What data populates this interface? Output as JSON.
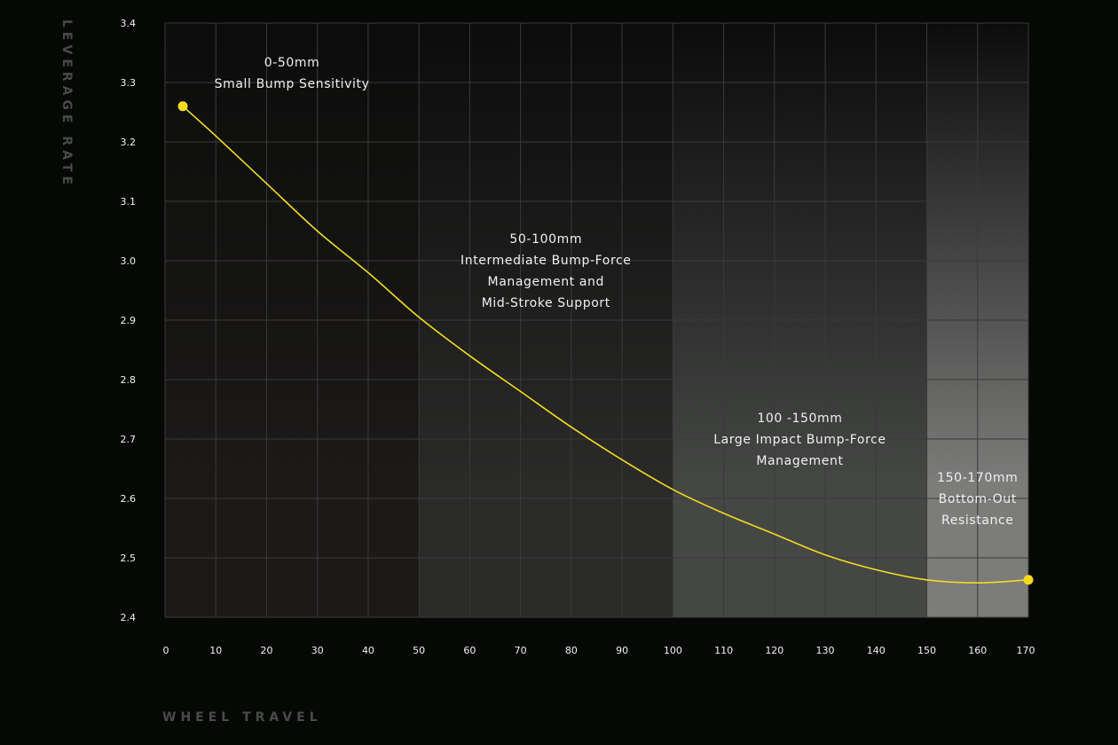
{
  "chart_data": {
    "type": "line",
    "xlabel": "WHEEL TRAVEL",
    "ylabel": "LEVERAGE RATE",
    "xlim": [
      0,
      170
    ],
    "ylim": [
      2.4,
      3.4
    ],
    "x_ticks": [
      "0",
      "10",
      "20",
      "30",
      "40",
      "50",
      "60",
      "70",
      "80",
      "90",
      "100",
      "110",
      "120",
      "130",
      "140",
      "150",
      "160",
      "170"
    ],
    "y_ticks": [
      "3.4",
      "3.3",
      "3.2",
      "3.1",
      "3.0",
      "2.9",
      "2.8",
      "2.7",
      "2.6",
      "2.5",
      "2.4"
    ],
    "grid": true,
    "line_color": "#f3dc1f",
    "series": [
      {
        "x": [
          3.5,
          10,
          20,
          30,
          40,
          50,
          60,
          70,
          80,
          90,
          100,
          110,
          120,
          130,
          140,
          150,
          160,
          170
        ],
        "y": [
          3.26,
          3.21,
          3.13,
          3.05,
          2.98,
          2.905,
          2.84,
          2.78,
          2.72,
          2.665,
          2.615,
          2.575,
          2.54,
          2.505,
          2.48,
          2.463,
          2.458,
          2.463
        ]
      }
    ],
    "zones": [
      {
        "from": 0,
        "to": 50,
        "lines": [
          "0-50mm",
          "Small Bump Sensitivity"
        ],
        "color": "#1c1a19"
      },
      {
        "from": 50,
        "to": 100,
        "lines": [
          "50-100mm",
          "Intermediate Bump-Force",
          "Management and",
          "Mid-Stroke Support"
        ],
        "color": "#2a2a29"
      },
      {
        "from": 100,
        "to": 150,
        "lines": [
          "100 -150mm",
          "Large Impact Bump-Force",
          "Management"
        ],
        "color": "#454745"
      },
      {
        "from": 150,
        "to": 170,
        "lines": [
          "150-170mm",
          "Bottom-Out",
          "Resistance"
        ],
        "color": "#7c7c7b"
      }
    ]
  }
}
